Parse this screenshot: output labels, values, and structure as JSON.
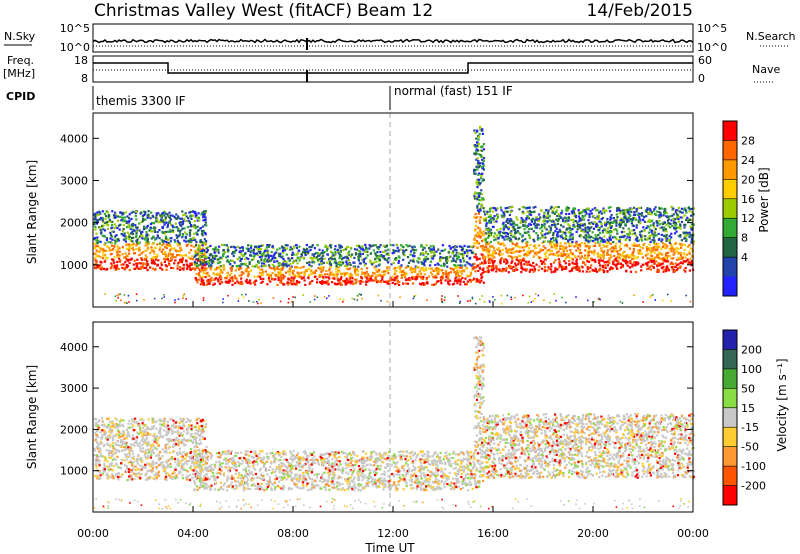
{
  "header": {
    "station": "Christmas Valley West (fitACF)",
    "beam": "Beam 12",
    "date": "14/Feb/2015"
  },
  "param_panels": {
    "nsky_label": "N.Sky",
    "nsky_top_tick": "10^5",
    "nsky_bottom_tick": "10^0",
    "nsearch_label": "N.Search",
    "nsearch_top_tick": "10^5",
    "nsearch_bottom_tick": "10^0",
    "freq_label": "Freq.",
    "freq_unit": "[MHz]",
    "freq_top_tick": "18",
    "freq_bottom_tick": "8",
    "nave_label": "Nave",
    "nave_top_tick": "60",
    "nave_bottom_tick": "0",
    "cpid_label": "CPID",
    "cpid_modes": [
      {
        "name": "themis 3300 IF",
        "start_hour": 0
      },
      {
        "name": "normal (fast) 151 IF",
        "start_hour": 12
      }
    ],
    "freq_steps": [
      {
        "start_hour": 0,
        "end_hour": 3.0,
        "level": "high"
      },
      {
        "start_hour": 3.0,
        "end_hour": 15.0,
        "level": "low"
      },
      {
        "start_hour": 15.0,
        "end_hour": 24.0,
        "level": "high"
      }
    ]
  },
  "chart_data": [
    {
      "type": "heatmap",
      "quantity": "Power",
      "xlabel": "",
      "ylabel": "Slant Range [km]",
      "x_range_hours": [
        0,
        24
      ],
      "ylim": [
        0,
        4600
      ],
      "y_ticks": [
        "1000",
        "2000",
        "3000",
        "4000"
      ],
      "colorbar": {
        "label": "Power [dB]",
        "ticks": [
          "28",
          "24",
          "20",
          "16",
          "12",
          "8",
          "4"
        ],
        "colors": [
          "#ff0000",
          "#ff6600",
          "#ff9900",
          "#ffcc00",
          "#9ccc00",
          "#33aa33",
          "#226644",
          "#2244aa",
          "#2222ff"
        ]
      },
      "features": [
        {
          "start_hour": 0.0,
          "end_hour": 3.2,
          "range_low": 900,
          "range_high": 2300
        },
        {
          "start_hour": 3.2,
          "end_hour": 4.5,
          "range_low": 900,
          "range_high": 2300
        },
        {
          "start_hour": 4.0,
          "end_hour": 15.2,
          "range_low": 550,
          "range_high": 1500
        },
        {
          "start_hour": 15.2,
          "end_hour": 15.6,
          "range_low": 600,
          "range_high": 4300
        },
        {
          "start_hour": 15.6,
          "end_hour": 24.0,
          "range_low": 850,
          "range_high": 2400
        }
      ]
    },
    {
      "type": "heatmap",
      "quantity": "Velocity",
      "xlabel": "Time UT",
      "ylabel": "Slant Range [km]",
      "x_range_hours": [
        0,
        24
      ],
      "ylim": [
        0,
        4600
      ],
      "y_ticks": [
        "1000",
        "2000",
        "3000",
        "4000"
      ],
      "x_ticks": [
        "00:00",
        "04:00",
        "08:00",
        "12:00",
        "16:00",
        "20:00",
        "00:00"
      ],
      "colorbar": {
        "label": "Velocity [m s⁻¹]",
        "ticks": [
          "200",
          "100",
          "50",
          "15",
          "-15",
          "-50",
          "-100",
          "-200"
        ],
        "colors": [
          "#2222aa",
          "#336655",
          "#44aa33",
          "#88dd44",
          "#c8c8c8",
          "#ffcc33",
          "#ff9933",
          "#ff5500",
          "#ff0000"
        ]
      },
      "features": [
        {
          "start_hour": 0.0,
          "end_hour": 4.5,
          "range_low": 800,
          "range_high": 2300
        },
        {
          "start_hour": 4.0,
          "end_hour": 15.2,
          "range_low": 550,
          "range_high": 1500
        },
        {
          "start_hour": 15.2,
          "end_hour": 15.6,
          "range_low": 600,
          "range_high": 4300
        },
        {
          "start_hour": 15.6,
          "end_hour": 24.0,
          "range_low": 850,
          "range_high": 2400
        }
      ]
    }
  ]
}
